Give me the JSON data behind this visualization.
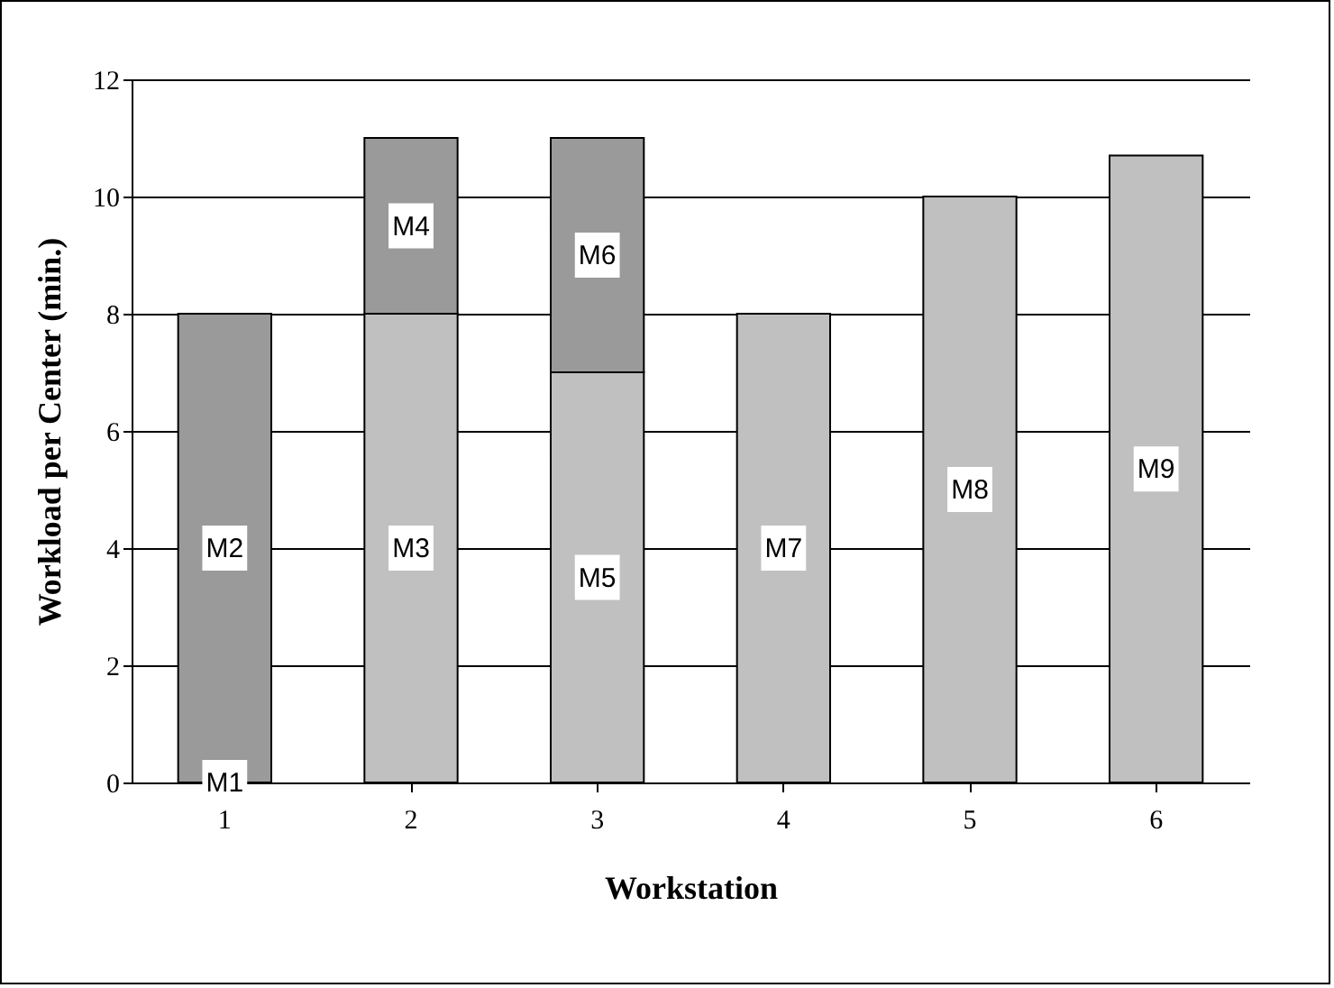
{
  "chart_data": {
    "type": "bar",
    "stacked": true,
    "xlabel": "Workstation",
    "ylabel": "Workload per Center (min.)",
    "categories": [
      "1",
      "2",
      "3",
      "4",
      "5",
      "6"
    ],
    "series": [
      {
        "color": "#c0c0c0",
        "values": [
          0,
          8,
          7,
          8,
          10,
          10.7
        ],
        "value_labels": [
          "M1",
          "M3",
          "M5",
          "M7",
          "M8",
          "M9"
        ]
      },
      {
        "color": "#9a9a9a",
        "values": [
          8,
          3,
          4,
          null,
          null,
          null
        ],
        "value_labels": [
          "M2",
          "M4",
          "M6",
          null,
          null,
          null
        ]
      }
    ],
    "ylim": [
      0,
      12
    ],
    "yticks": [
      0,
      2,
      4,
      6,
      8,
      10,
      12
    ],
    "grid": "y"
  }
}
